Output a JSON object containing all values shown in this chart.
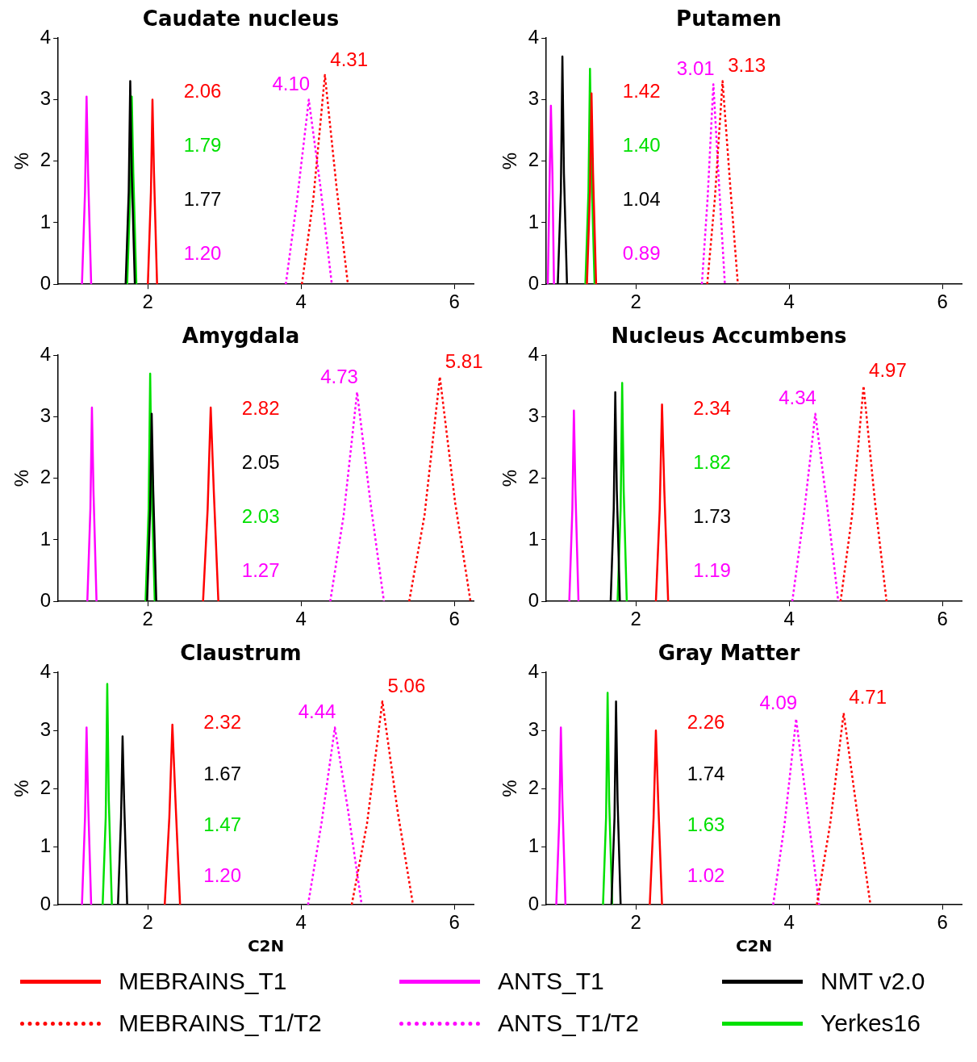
{
  "chart_data": [
    {
      "type": "line",
      "title": "Caudate nucleus",
      "ylabel": "%",
      "xlim": [
        0.83,
        6.25
      ],
      "ylim": [
        0,
        4
      ],
      "xticks": [
        2,
        4,
        6
      ],
      "yticks": [
        0,
        1,
        2,
        3,
        4
      ],
      "grid": false,
      "legend": false,
      "marker": "none",
      "series": [
        {
          "color": "#ff0000",
          "line_style": "solid",
          "x": [
            2.0,
            2.04,
            2.06,
            2.08,
            2.12
          ],
          "values": [
            0,
            1.5,
            3.0,
            1.8,
            0
          ]
        },
        {
          "color": "#ff0000",
          "line_style": "dotted",
          "x": [
            4.01,
            4.16,
            4.31,
            4.46,
            4.61
          ],
          "values": [
            0,
            1.4,
            3.4,
            1.6,
            0
          ]
        },
        {
          "color": "#ff00ff",
          "line_style": "solid",
          "x": [
            1.14,
            1.18,
            1.2,
            1.22,
            1.26
          ],
          "values": [
            0,
            1.5,
            3.05,
            1.8,
            0
          ]
        },
        {
          "color": "#ff00ff",
          "line_style": "dotted",
          "x": [
            3.8,
            3.95,
            4.1,
            4.25,
            4.4
          ],
          "values": [
            0,
            1.4,
            3.0,
            1.6,
            0
          ]
        },
        {
          "color": "#000000",
          "line_style": "solid",
          "x": [
            1.71,
            1.75,
            1.77,
            1.79,
            1.83
          ],
          "values": [
            0,
            1.5,
            3.3,
            1.8,
            0
          ]
        },
        {
          "color": "#00e000",
          "line_style": "solid",
          "x": [
            1.73,
            1.77,
            1.79,
            1.81,
            1.85
          ],
          "values": [
            0,
            1.5,
            3.05,
            1.8,
            0
          ]
        }
      ],
      "annotations": [
        "2.06",
        "4.31",
        "1.20",
        "4.10",
        "1.77",
        "1.79"
      ]
    },
    {
      "type": "line",
      "title": "Putamen",
      "ylabel": "%",
      "xlim": [
        0.83,
        6.25
      ],
      "ylim": [
        0,
        4
      ],
      "xticks": [
        2,
        4,
        6
      ],
      "yticks": [
        0,
        1,
        2,
        3,
        4
      ],
      "grid": false,
      "legend": false,
      "marker": "none",
      "series": [
        {
          "color": "#ff0000",
          "line_style": "solid",
          "x": [
            1.36,
            1.4,
            1.42,
            1.44,
            1.48
          ],
          "values": [
            0,
            1.5,
            3.1,
            1.8,
            0
          ]
        },
        {
          "color": "#ff0000",
          "line_style": "dotted",
          "x": [
            2.93,
            3.03,
            3.13,
            3.23,
            3.33
          ],
          "values": [
            0,
            1.4,
            3.3,
            1.6,
            0
          ]
        },
        {
          "color": "#ff00ff",
          "line_style": "solid",
          "x": [
            0.85,
            0.87,
            0.89,
            0.91,
            0.93
          ],
          "values": [
            0,
            1.5,
            2.9,
            1.8,
            0
          ]
        },
        {
          "color": "#ff00ff",
          "line_style": "dotted",
          "x": [
            2.86,
            2.935,
            3.01,
            3.085,
            3.16
          ],
          "values": [
            0,
            1.4,
            3.25,
            1.6,
            0
          ]
        },
        {
          "color": "#000000",
          "line_style": "solid",
          "x": [
            0.98,
            1.02,
            1.04,
            1.06,
            1.1
          ],
          "values": [
            0,
            1.5,
            3.7,
            1.8,
            0
          ]
        },
        {
          "color": "#00e000",
          "line_style": "solid",
          "x": [
            1.34,
            1.38,
            1.4,
            1.42,
            1.46
          ],
          "values": [
            0,
            1.5,
            3.5,
            1.8,
            0
          ]
        }
      ],
      "annotations": [
        "1.42",
        "3.13",
        "0.89",
        "3.01",
        "1.04",
        "1.40"
      ]
    },
    {
      "type": "line",
      "title": "Amygdala",
      "ylabel": "%",
      "xlim": [
        0.83,
        6.25
      ],
      "ylim": [
        0,
        4
      ],
      "xticks": [
        2,
        4,
        6
      ],
      "yticks": [
        0,
        1,
        2,
        3,
        4
      ],
      "grid": false,
      "legend": false,
      "marker": "none",
      "series": [
        {
          "color": "#ff0000",
          "line_style": "solid",
          "x": [
            2.72,
            2.78,
            2.82,
            2.86,
            2.92
          ],
          "values": [
            0,
            1.5,
            3.15,
            1.8,
            0
          ]
        },
        {
          "color": "#ff0000",
          "line_style": "dotted",
          "x": [
            5.41,
            5.61,
            5.81,
            6.01,
            6.21
          ],
          "values": [
            0,
            1.4,
            3.65,
            1.6,
            0
          ]
        },
        {
          "color": "#ff00ff",
          "line_style": "solid",
          "x": [
            1.21,
            1.25,
            1.27,
            1.29,
            1.33
          ],
          "values": [
            0,
            1.5,
            3.15,
            1.8,
            0
          ]
        },
        {
          "color": "#ff00ff",
          "line_style": "dotted",
          "x": [
            4.38,
            4.555,
            4.73,
            4.905,
            5.08
          ],
          "values": [
            0,
            1.4,
            3.4,
            1.6,
            0
          ]
        },
        {
          "color": "#000000",
          "line_style": "solid",
          "x": [
            1.99,
            2.03,
            2.05,
            2.07,
            2.11
          ],
          "values": [
            0,
            1.5,
            3.05,
            1.8,
            0
          ]
        },
        {
          "color": "#00e000",
          "line_style": "solid",
          "x": [
            1.97,
            2.01,
            2.03,
            2.05,
            2.09
          ],
          "values": [
            0,
            1.5,
            3.7,
            1.8,
            0
          ]
        }
      ],
      "annotations": [
        "2.82",
        "5.81",
        "1.27",
        "4.73",
        "2.05",
        "2.03"
      ]
    },
    {
      "type": "line",
      "title": "Nucleus Accumbens",
      "ylabel": "%",
      "xlim": [
        0.83,
        6.25
      ],
      "ylim": [
        0,
        4
      ],
      "xticks": [
        2,
        4,
        6
      ],
      "yticks": [
        0,
        1,
        2,
        3,
        4
      ],
      "grid": false,
      "legend": false,
      "marker": "none",
      "series": [
        {
          "color": "#ff0000",
          "line_style": "solid",
          "x": [
            2.26,
            2.31,
            2.34,
            2.37,
            2.42
          ],
          "values": [
            0,
            1.5,
            3.2,
            1.8,
            0
          ]
        },
        {
          "color": "#ff0000",
          "line_style": "dotted",
          "x": [
            4.67,
            4.82,
            4.97,
            5.12,
            5.27
          ],
          "values": [
            0,
            1.4,
            3.5,
            1.6,
            0
          ]
        },
        {
          "color": "#ff00ff",
          "line_style": "solid",
          "x": [
            1.13,
            1.17,
            1.19,
            1.21,
            1.25
          ],
          "values": [
            0,
            1.5,
            3.1,
            1.8,
            0
          ]
        },
        {
          "color": "#ff00ff",
          "line_style": "dotted",
          "x": [
            4.04,
            4.19,
            4.34,
            4.49,
            4.64
          ],
          "values": [
            0,
            1.4,
            3.05,
            1.6,
            0
          ]
        },
        {
          "color": "#000000",
          "line_style": "solid",
          "x": [
            1.67,
            1.71,
            1.73,
            1.75,
            1.79
          ],
          "values": [
            0,
            1.5,
            3.4,
            1.8,
            0
          ]
        },
        {
          "color": "#00e000",
          "line_style": "solid",
          "x": [
            1.76,
            1.8,
            1.82,
            1.84,
            1.88
          ],
          "values": [
            0,
            1.5,
            3.55,
            1.8,
            0
          ]
        }
      ],
      "annotations": [
        "2.34",
        "4.97",
        "1.19",
        "4.34",
        "1.73",
        "1.82"
      ]
    },
    {
      "type": "line",
      "title": "Claustrum",
      "xlabel": "C2N",
      "ylabel": "%",
      "xlim": [
        0.83,
        6.25
      ],
      "ylim": [
        0,
        4
      ],
      "xticks": [
        2,
        4,
        6
      ],
      "yticks": [
        0,
        1,
        2,
        3,
        4
      ],
      "grid": false,
      "legend": false,
      "marker": "none",
      "series": [
        {
          "color": "#ff0000",
          "line_style": "solid",
          "x": [
            2.22,
            2.28,
            2.32,
            2.36,
            2.42
          ],
          "values": [
            0,
            1.5,
            3.1,
            1.8,
            0
          ]
        },
        {
          "color": "#ff0000",
          "line_style": "dotted",
          "x": [
            4.66,
            4.86,
            5.06,
            5.26,
            5.46
          ],
          "values": [
            0,
            1.4,
            3.5,
            1.6,
            0
          ]
        },
        {
          "color": "#ff00ff",
          "line_style": "solid",
          "x": [
            1.14,
            1.18,
            1.2,
            1.22,
            1.26
          ],
          "values": [
            0,
            1.5,
            3.05,
            1.8,
            0
          ]
        },
        {
          "color": "#ff00ff",
          "line_style": "dotted",
          "x": [
            4.09,
            4.265,
            4.44,
            4.615,
            4.79
          ],
          "values": [
            0,
            1.4,
            3.05,
            1.6,
            0
          ]
        },
        {
          "color": "#000000",
          "line_style": "solid",
          "x": [
            1.61,
            1.65,
            1.67,
            1.69,
            1.73
          ],
          "values": [
            0,
            1.5,
            2.9,
            1.8,
            0
          ]
        },
        {
          "color": "#00e000",
          "line_style": "solid",
          "x": [
            1.41,
            1.45,
            1.47,
            1.49,
            1.53
          ],
          "values": [
            0,
            1.5,
            3.8,
            1.8,
            0
          ]
        }
      ],
      "annotations": [
        "2.32",
        "5.06",
        "1.20",
        "4.44",
        "1.67",
        "1.47"
      ]
    },
    {
      "type": "line",
      "title": "Gray Matter",
      "xlabel": "C2N",
      "ylabel": "%",
      "xlim": [
        0.83,
        6.25
      ],
      "ylim": [
        0,
        4
      ],
      "xticks": [
        2,
        4,
        6
      ],
      "yticks": [
        0,
        1,
        2,
        3,
        4
      ],
      "grid": false,
      "legend": "bottom",
      "marker": "none",
      "series": [
        {
          "name": "MEBRAINS_T1",
          "color": "#ff0000",
          "line_style": "solid",
          "x": [
            2.18,
            2.23,
            2.26,
            2.29,
            2.34
          ],
          "values": [
            0,
            1.5,
            3.0,
            1.8,
            0
          ]
        },
        {
          "name": "MEBRAINS_T1/T2",
          "color": "#ff0000",
          "line_style": "dotted",
          "x": [
            4.36,
            4.535,
            4.71,
            4.885,
            5.06
          ],
          "values": [
            0,
            1.4,
            3.3,
            1.6,
            0
          ]
        },
        {
          "name": "ANTS_T1",
          "color": "#ff00ff",
          "line_style": "solid",
          "x": [
            0.96,
            1.0,
            1.02,
            1.04,
            1.08
          ],
          "values": [
            0,
            1.5,
            3.05,
            1.8,
            0
          ]
        },
        {
          "name": "ANTS_T1/T2",
          "color": "#ff00ff",
          "line_style": "dotted",
          "x": [
            3.79,
            3.94,
            4.09,
            4.24,
            4.39
          ],
          "values": [
            0,
            1.4,
            3.2,
            1.6,
            0
          ]
        },
        {
          "name": "NMT v2.0",
          "color": "#000000",
          "line_style": "solid",
          "x": [
            1.68,
            1.72,
            1.74,
            1.76,
            1.8
          ],
          "values": [
            0,
            1.5,
            3.5,
            1.8,
            0
          ]
        },
        {
          "name": "Yerkes16",
          "color": "#00e000",
          "line_style": "solid",
          "x": [
            1.57,
            1.61,
            1.63,
            1.65,
            1.69
          ],
          "values": [
            0,
            1.5,
            3.65,
            1.8,
            0
          ]
        }
      ],
      "annotations": [
        "2.26",
        "4.71",
        "1.02",
        "4.09",
        "1.74",
        "1.63"
      ]
    }
  ]
}
